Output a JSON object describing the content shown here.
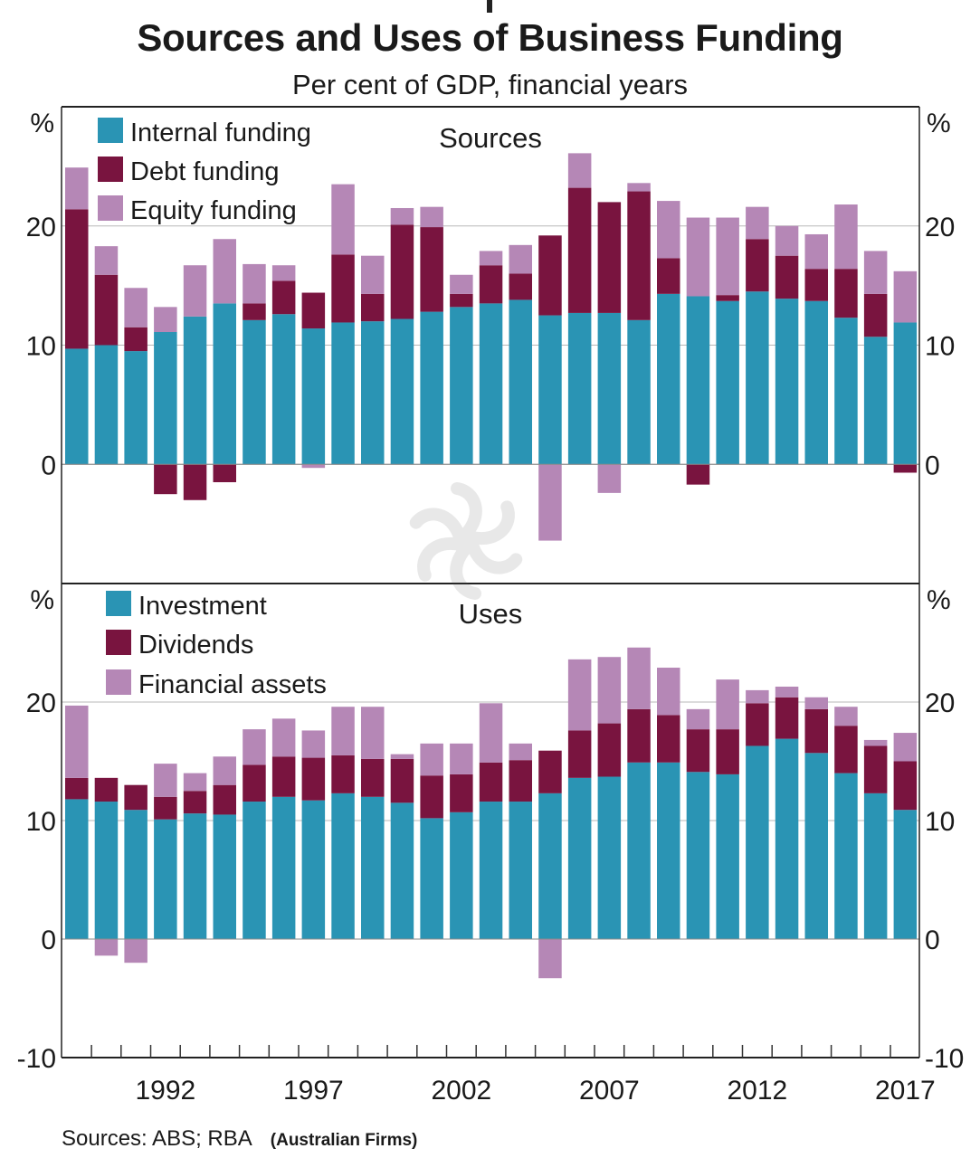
{
  "header": {
    "title": "Sources and Uses of Business Funding",
    "subtitle": "Per cent of GDP, financial years"
  },
  "footer": {
    "sources": "Sources: ABS; RBA",
    "note": "(Australian Firms)"
  },
  "colors": {
    "teal": "#2a94b4",
    "maroon": "#79143f",
    "lavender": "#b587b6"
  },
  "chart_data": [
    {
      "type": "bar",
      "stacked": true,
      "title": "Sources",
      "ylabel": "%",
      "ylim": [
        -10,
        30
      ],
      "yticks": [
        -10,
        0,
        10,
        20
      ],
      "grid": true,
      "legend_position": "top-left",
      "categories": [
        "1989",
        "1990",
        "1991",
        "1992",
        "1993",
        "1994",
        "1995",
        "1996",
        "1997",
        "1998",
        "1999",
        "2000",
        "2001",
        "2002",
        "2003",
        "2004",
        "2005",
        "2006",
        "2007",
        "2008",
        "2009",
        "2010",
        "2011",
        "2012",
        "2013",
        "2014",
        "2015",
        "2016",
        "2017"
      ],
      "xtick_labels": [
        "1992",
        "1997",
        "2002",
        "2007",
        "2012",
        "2017"
      ],
      "series": [
        {
          "name": "Internal funding",
          "color": "#2a94b4",
          "values": [
            9.7,
            10.0,
            9.5,
            11.1,
            12.4,
            13.5,
            12.1,
            12.6,
            11.4,
            11.9,
            12.0,
            12.2,
            12.8,
            13.2,
            13.5,
            13.8,
            12.5,
            12.7,
            12.7,
            12.1,
            14.3,
            14.1,
            13.7,
            14.5,
            13.9,
            13.7,
            12.3,
            10.7,
            11.9
          ]
        },
        {
          "name": "Debt funding",
          "color": "#79143f",
          "values": [
            11.7,
            5.9,
            2.0,
            -2.5,
            -3.0,
            -1.5,
            1.4,
            2.8,
            3.0,
            5.7,
            2.3,
            7.9,
            7.1,
            1.1,
            3.2,
            2.2,
            6.7,
            10.5,
            9.3,
            10.8,
            3.0,
            -1.7,
            0.5,
            4.4,
            3.6,
            2.7,
            4.1,
            3.6,
            -0.7
          ]
        },
        {
          "name": "Equity funding",
          "color": "#b587b6",
          "values": [
            3.5,
            2.4,
            3.3,
            2.1,
            4.3,
            5.4,
            3.3,
            1.3,
            -0.3,
            5.9,
            3.2,
            1.4,
            1.7,
            1.6,
            1.2,
            2.4,
            -6.4,
            2.9,
            -2.4,
            0.7,
            4.8,
            6.6,
            6.5,
            2.7,
            2.5,
            2.9,
            5.4,
            3.6,
            4.3
          ]
        }
      ]
    },
    {
      "type": "bar",
      "stacked": true,
      "title": "Uses",
      "ylabel": "%",
      "ylim": [
        -10,
        30
      ],
      "yticks": [
        -10,
        0,
        10,
        20
      ],
      "grid": true,
      "legend_position": "top-left",
      "categories": [
        "1989",
        "1990",
        "1991",
        "1992",
        "1993",
        "1994",
        "1995",
        "1996",
        "1997",
        "1998",
        "1999",
        "2000",
        "2001",
        "2002",
        "2003",
        "2004",
        "2005",
        "2006",
        "2007",
        "2008",
        "2009",
        "2010",
        "2011",
        "2012",
        "2013",
        "2014",
        "2015",
        "2016",
        "2017"
      ],
      "xtick_labels": [
        "1992",
        "1997",
        "2002",
        "2007",
        "2012",
        "2017"
      ],
      "series": [
        {
          "name": "Investment",
          "color": "#2a94b4",
          "values": [
            11.8,
            11.6,
            10.9,
            10.1,
            10.6,
            10.5,
            11.6,
            12.0,
            11.7,
            12.3,
            12.0,
            11.5,
            10.2,
            10.7,
            11.6,
            11.6,
            12.3,
            13.6,
            13.7,
            14.9,
            14.9,
            14.1,
            13.9,
            16.3,
            16.9,
            15.7,
            14.0,
            12.3,
            10.9
          ]
        },
        {
          "name": "Dividends",
          "color": "#79143f",
          "values": [
            1.8,
            2.0,
            2.1,
            1.9,
            1.9,
            2.5,
            3.1,
            3.4,
            3.6,
            3.2,
            3.2,
            3.7,
            3.6,
            3.2,
            3.3,
            3.5,
            3.6,
            4.0,
            4.5,
            4.5,
            4.0,
            3.6,
            3.8,
            3.6,
            3.5,
            3.7,
            4.0,
            4.0,
            4.1
          ]
        },
        {
          "name": "Financial assets",
          "color": "#b587b6",
          "values": [
            6.1,
            -1.4,
            -2.0,
            2.8,
            1.5,
            2.4,
            3.0,
            3.2,
            2.3,
            4.1,
            4.4,
            0.4,
            2.7,
            2.6,
            5.0,
            1.4,
            -3.3,
            6.0,
            5.6,
            5.2,
            4.0,
            1.7,
            4.2,
            1.1,
            0.9,
            1.0,
            1.6,
            0.5,
            2.4
          ]
        }
      ]
    }
  ]
}
